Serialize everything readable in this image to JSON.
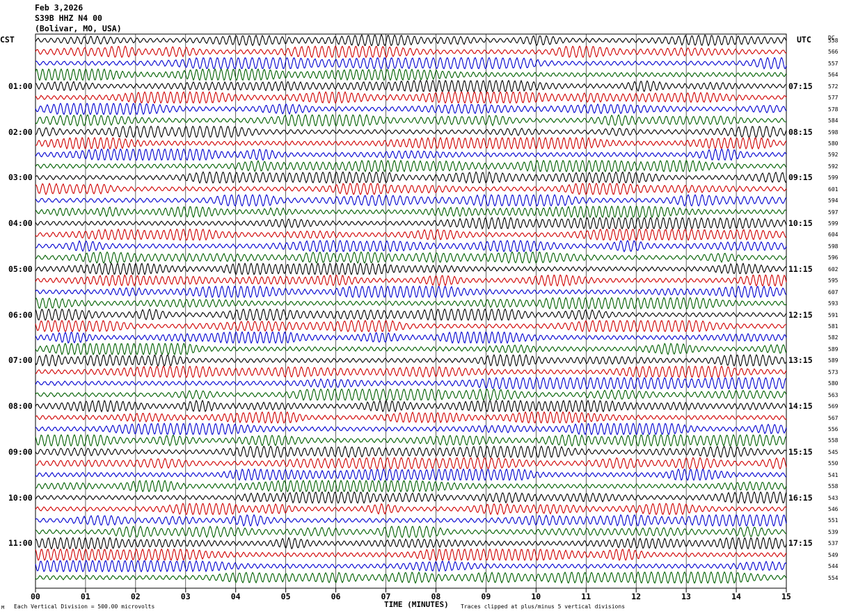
{
  "header": {
    "date": "Feb 3,2026",
    "station": "S39B HHZ N4 00",
    "location": "(Bolivar, MO, USA)"
  },
  "labels": {
    "left_tz": "CST",
    "right_tz": "UTC",
    "dc_header": "DC",
    "xaxis": "TIME (MINUTES)",
    "scale_note": "Each Vertical Division =  500.00 microvolts",
    "clip_note": "Traces clipped at plus/minus 5 vertical divisions",
    "corner_mark": "M"
  },
  "colors": {
    "trace_cycle": [
      "#000000",
      "#d00000",
      "#0000d0",
      "#006000"
    ],
    "grid": "#000000"
  },
  "chart_data": {
    "type": "line",
    "title": "",
    "xlabel": "TIME (MINUTES)",
    "xlim": [
      0,
      15
    ],
    "x_ticks": [
      "00",
      "01",
      "02",
      "03",
      "04",
      "05",
      "06",
      "07",
      "08",
      "09",
      "10",
      "11",
      "12",
      "13",
      "14",
      "15"
    ],
    "rows_per_hour": 4,
    "left_hour_labels": [
      "01:00",
      "02:00",
      "03:00",
      "04:00",
      "05:00",
      "06:00",
      "07:00",
      "08:00",
      "09:00",
      "10:00",
      "11:00"
    ],
    "right_hour_labels": [
      "07:15",
      "08:15",
      "09:15",
      "10:15",
      "11:15",
      "12:15",
      "13:15",
      "14:15",
      "15:15",
      "16:15",
      "17:15"
    ],
    "dc_offsets": [
      558,
      566,
      557,
      564,
      572,
      577,
      578,
      584,
      598,
      580,
      592,
      592,
      599,
      601,
      594,
      597,
      599,
      604,
      598,
      596,
      602,
      595,
      607,
      593,
      591,
      581,
      582,
      589,
      589,
      573,
      580,
      563,
      569,
      567,
      556,
      558,
      545,
      550,
      541,
      558,
      543,
      546,
      551,
      539,
      537,
      549,
      544,
      554
    ],
    "series_amplitude_note": "traces clipped at plus/minus 5 vertical divisions"
  }
}
